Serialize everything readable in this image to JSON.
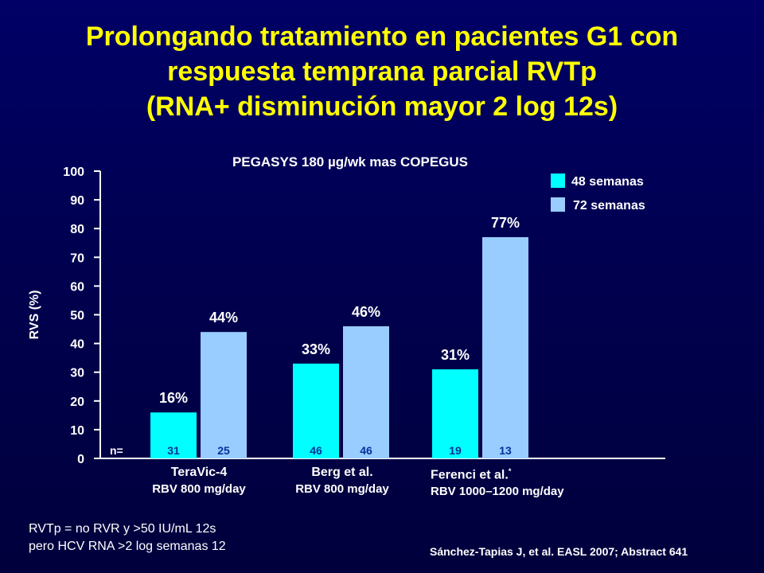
{
  "title": {
    "line1": "Prolongando tratamiento en pacientes G1 con",
    "line2": "respuesta temprana parcial RVTp",
    "line3": "(RNA+ disminución mayor 2 log 12s)"
  },
  "colors": {
    "background": "#000066",
    "title": "#ffff00",
    "series_48": "#00ffff",
    "series_72": "#99ccff",
    "text": "#ffffff"
  },
  "chart_data": {
    "type": "bar",
    "title": "PEGASYS 180 µg/wk mas COPEGUS",
    "ylabel": "RVS (%)",
    "ylim": [
      0,
      100
    ],
    "yticks": [
      0,
      10,
      20,
      30,
      40,
      50,
      60,
      70,
      80,
      90,
      100
    ],
    "grid": false,
    "legend_position": "top-right",
    "n_label": "n=",
    "categories": [
      "TeraVic-4",
      "Berg et al.",
      "Ferenci et al."
    ],
    "series": [
      {
        "name": "48 semanas",
        "color": "#00ffff",
        "values": [
          16,
          33,
          31
        ],
        "labels": [
          "16%",
          "33%",
          "31%"
        ],
        "n": [
          "31",
          "46",
          "19"
        ]
      },
      {
        "name": "72 semanas",
        "color": "#99ccff",
        "values": [
          44,
          46,
          77
        ],
        "labels": [
          "44%",
          "46%",
          "77%"
        ],
        "n": [
          "25",
          "46",
          "13"
        ]
      }
    ]
  },
  "studies": [
    {
      "name": "TeraVic-4",
      "sup": "",
      "dose": "RBV 800 mg/day"
    },
    {
      "name": "Berg et al.",
      "sup": "",
      "dose": "RBV 800 mg/day"
    },
    {
      "name": "Ferenci et al.",
      "sup": "*",
      "dose": "RBV 1000–1200 mg/day"
    }
  ],
  "footnote": {
    "line1": "RVTp = no RVR y >50 IU/mL 12s",
    "line2": "pero HCV RNA >2 log semanas 12"
  },
  "source": "Sánchez-Tapias J, et al. EASL 2007; Abstract 641"
}
